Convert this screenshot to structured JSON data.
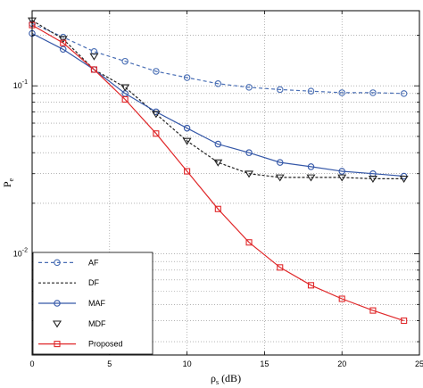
{
  "chart_data": {
    "type": "line",
    "xlabel": "ρ",
    "xlabel_sub": "s",
    "xlabel_unit": " (dB)",
    "ylabel": "P",
    "ylabel_sub": "e",
    "xlim": [
      0,
      25
    ],
    "ylim": [
      0.0025,
      0.28
    ],
    "yscale": "log",
    "grid": true,
    "legend_position": "bottom-left",
    "x_ticks": [
      0,
      5,
      10,
      15,
      20,
      25
    ],
    "x_tick_labels": [
      "0",
      "5",
      "10",
      "15",
      "20",
      "25"
    ],
    "y_major_ticks": [
      0.01,
      0.1
    ],
    "y_tick_labels": [
      {
        "base": "10",
        "exp": "-2"
      },
      {
        "base": "10",
        "exp": "-1"
      }
    ],
    "series": [
      {
        "name": "AF",
        "color": "#4a6fb5",
        "dash": "4,3",
        "marker": "circle",
        "x": [
          0,
          2,
          4,
          6,
          8,
          10,
          12,
          14,
          16,
          18,
          20,
          22,
          24
        ],
        "y": [
          0.235,
          0.195,
          0.16,
          0.14,
          0.122,
          0.112,
          0.103,
          0.098,
          0.095,
          0.093,
          0.091,
          0.091,
          0.09
        ]
      },
      {
        "name": "DF",
        "color": "#222222",
        "dash": "3,2",
        "marker": "none",
        "x": [
          0,
          2,
          4,
          6,
          8,
          10,
          12,
          14,
          16,
          18,
          20,
          22,
          24
        ],
        "y": [
          0.245,
          0.19,
          0.125,
          0.098,
          0.068,
          0.047,
          0.035,
          0.03,
          0.0285,
          0.0285,
          0.0285,
          0.028,
          0.028
        ]
      },
      {
        "name": "MAF",
        "color": "#3558a8",
        "dash": "",
        "marker": "circle",
        "x": [
          0,
          2,
          4,
          6,
          8,
          10,
          12,
          14,
          16,
          18,
          20,
          22,
          24
        ],
        "y": [
          0.205,
          0.165,
          0.125,
          0.09,
          0.07,
          0.056,
          0.045,
          0.04,
          0.035,
          0.033,
          0.031,
          0.03,
          0.029
        ]
      },
      {
        "name": "MDF",
        "color": "#222222",
        "dash": "none",
        "marker": "triangle-down",
        "x": [
          0,
          2,
          4,
          6,
          8,
          10,
          12,
          14,
          16,
          18,
          20,
          22,
          24
        ],
        "y": [
          0.245,
          0.19,
          0.15,
          0.098,
          0.068,
          0.047,
          0.035,
          0.03,
          0.0285,
          0.0285,
          0.0285,
          0.028,
          0.028
        ]
      },
      {
        "name": "Proposed",
        "color": "#e0282a",
        "dash": "",
        "marker": "square",
        "x": [
          0,
          2,
          4,
          6,
          8,
          10,
          12,
          14,
          16,
          18,
          20,
          22,
          24
        ],
        "y": [
          0.23,
          0.18,
          0.125,
          0.083,
          0.052,
          0.031,
          0.0185,
          0.0117,
          0.0083,
          0.0065,
          0.0054,
          0.0046,
          0.004
        ]
      }
    ]
  }
}
